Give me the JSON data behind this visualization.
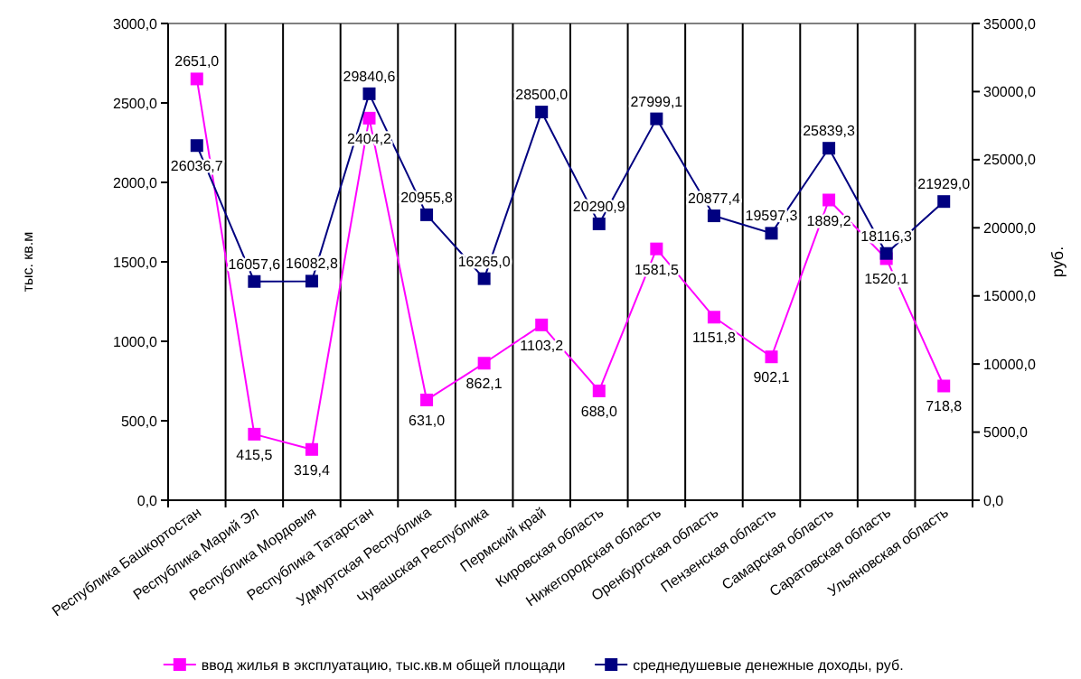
{
  "chart_data": {
    "type": "line",
    "ylabel": "тыс. кв.м",
    "y2label": "руб.",
    "categories": [
      "Республика Башкортостан",
      "Республика Марий Эл",
      "Республика Мордовия",
      "Республика Татарстан",
      "Удмуртская Республика",
      "Чувашская Республика",
      "Пермский край",
      "Кировская область",
      "Нижегородская область",
      "Оренбургская область",
      "Пензенская область",
      "Самарская область",
      "Саратовская область",
      "Ульяновская область"
    ],
    "series": [
      {
        "name": "ввод жилья в эксплуатацию, тыс.кв.м общей площади",
        "color": "#ff00ff",
        "values": [
          2651.0,
          415.5,
          319.4,
          2404.2,
          631.0,
          862.1,
          1103.2,
          688.0,
          1581.5,
          1151.8,
          902.1,
          1889.2,
          1520.1,
          718.8
        ],
        "value_labels": [
          "2651,0",
          "415,5",
          "319,4",
          "2404,2",
          "631,0",
          "862,1",
          "1103,2",
          "688,0",
          "1581,5",
          "1151,8",
          "902,1",
          "1889,2",
          "1520,1",
          "718,8"
        ]
      },
      {
        "name": "среднедушевые денежные доходы, руб.",
        "color": "#000080",
        "axis": "y2",
        "values": [
          26036.7,
          16057.6,
          16082.8,
          29840.6,
          20955.8,
          16265.0,
          28500.0,
          20290.9,
          27999.1,
          20877.4,
          19597.3,
          25839.3,
          18116.3,
          21929.0
        ],
        "value_labels": [
          "26036,7",
          "16057,6",
          "16082,8",
          "29840,6",
          "20955,8",
          "16265,0",
          "28500,0",
          "20290,9",
          "27999,1",
          "20877,4",
          "19597,3",
          "25839,3",
          "18116,3",
          "21929,0"
        ]
      }
    ],
    "ylim": [
      0,
      3000
    ],
    "yticks": [
      {
        "value": 0,
        "label": "0,0"
      },
      {
        "value": 500,
        "label": "500,0"
      },
      {
        "value": 1000,
        "label": "1000,0"
      },
      {
        "value": 1500,
        "label": "1500,0"
      },
      {
        "value": 2000,
        "label": "2000,0"
      },
      {
        "value": 2500,
        "label": "2500,0"
      },
      {
        "value": 3000,
        "label": "3000,0"
      }
    ],
    "y2lim": [
      0,
      35000
    ],
    "y2ticks": [
      {
        "value": 0,
        "label": "0,0"
      },
      {
        "value": 5000,
        "label": "5000,0"
      },
      {
        "value": 10000,
        "label": "10000,0"
      },
      {
        "value": 15000,
        "label": "15000,0"
      },
      {
        "value": 20000,
        "label": "20000,0"
      },
      {
        "value": 25000,
        "label": "25000,0"
      },
      {
        "value": 30000,
        "label": "30000,0"
      },
      {
        "value": 35000,
        "label": "35000,0"
      }
    ],
    "grid": "x",
    "legend": "bottom",
    "marker": "square",
    "line_style": "solid"
  }
}
